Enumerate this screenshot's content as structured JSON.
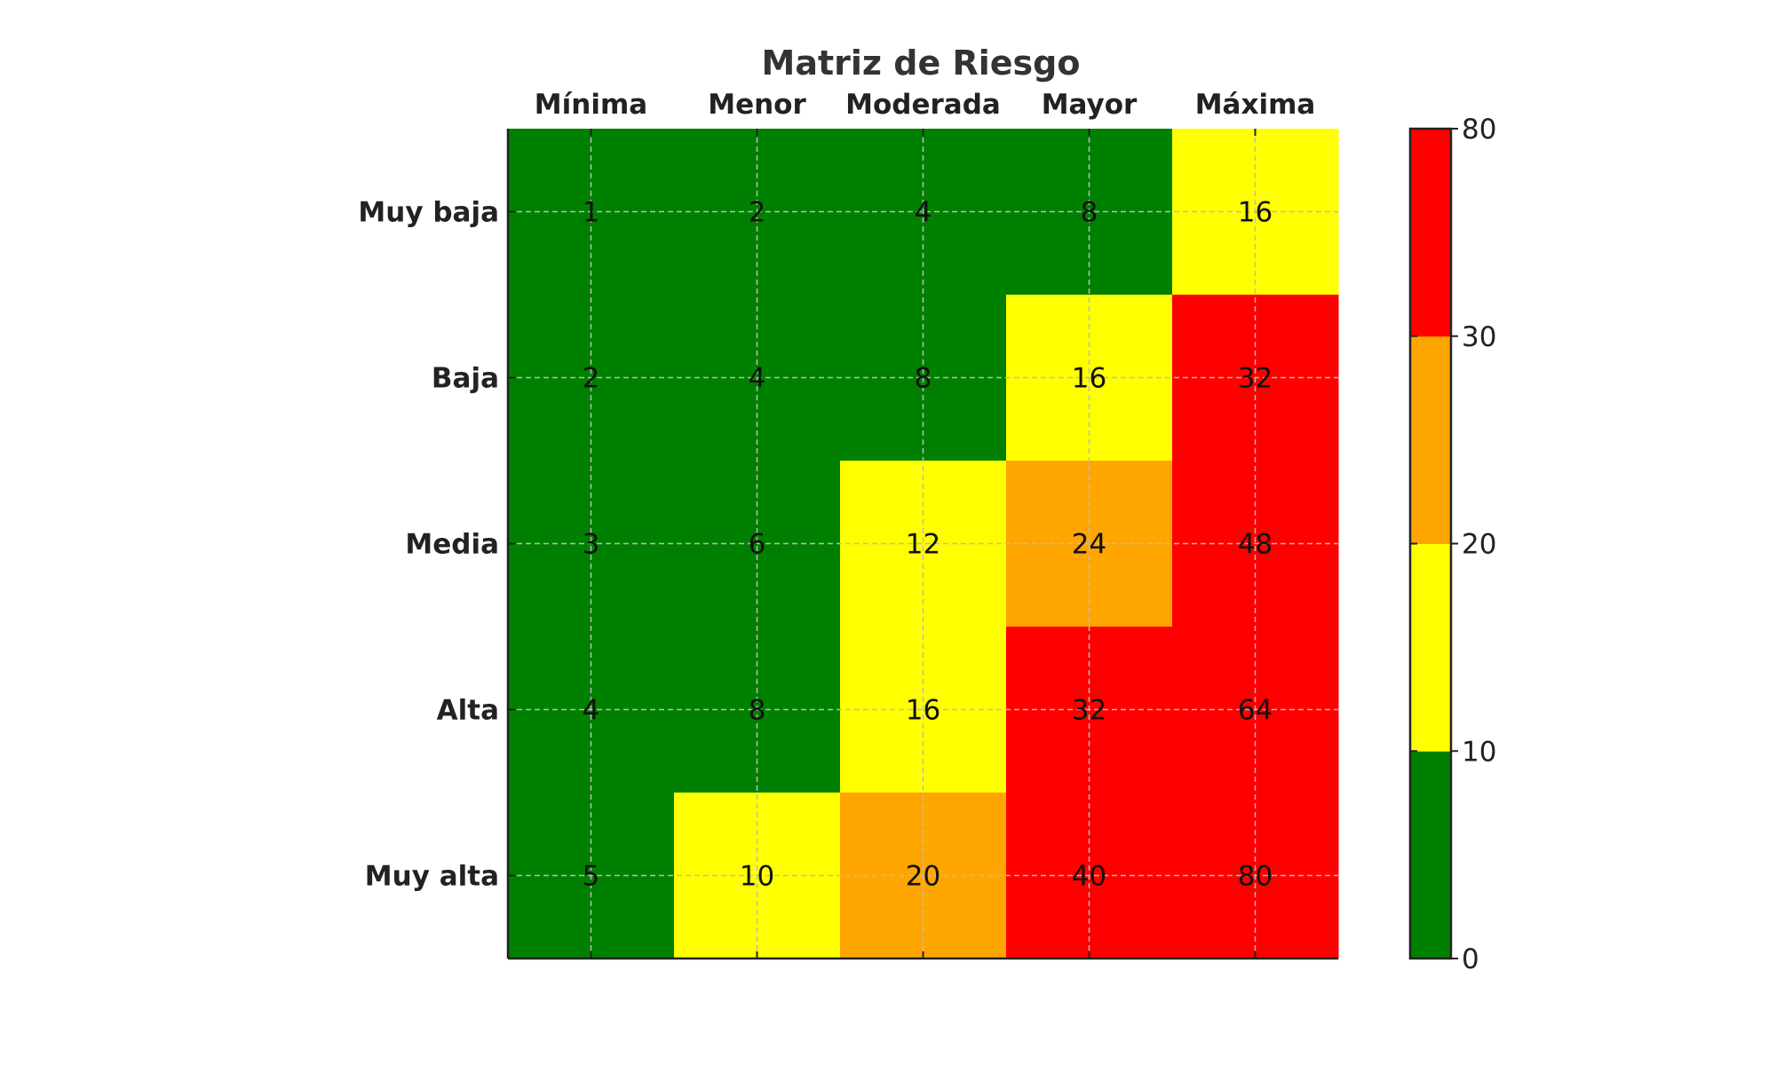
{
  "chart_data": {
    "type": "heatmap",
    "title": "Matriz de Riesgo",
    "columns": [
      "Mínima",
      "Menor",
      "Moderada",
      "Mayor",
      "Máxima"
    ],
    "rows": [
      "Muy baja",
      "Baja",
      "Media",
      "Alta",
      "Muy alta"
    ],
    "values": [
      [
        1,
        2,
        4,
        8,
        16
      ],
      [
        2,
        4,
        8,
        16,
        32
      ],
      [
        3,
        6,
        12,
        24,
        48
      ],
      [
        4,
        8,
        16,
        32,
        64
      ],
      [
        5,
        10,
        20,
        40,
        80
      ]
    ],
    "grid": true,
    "colorbar": {
      "placement": "right",
      "ticks": [
        0,
        10,
        20,
        30,
        80
      ],
      "bounds": [
        0,
        10,
        20,
        30,
        80
      ],
      "colors": [
        "#008000",
        "#ffff00",
        "#ffa500",
        "#ff0000"
      ]
    }
  }
}
